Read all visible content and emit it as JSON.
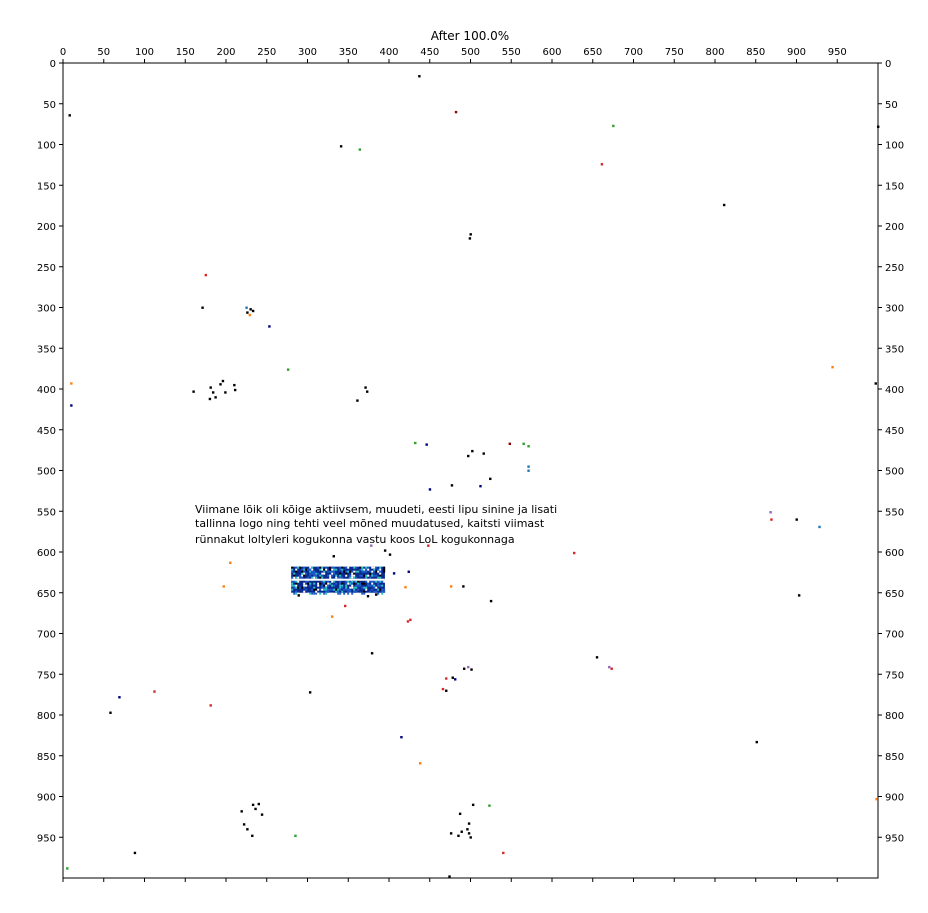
{
  "chart_data": {
    "type": "scatter",
    "title": "After 100.0%",
    "xlim": [
      0,
      1000
    ],
    "ylim": [
      0,
      1000
    ],
    "y_inverted": true,
    "x_ticks": [
      "0",
      "50",
      "100",
      "150",
      "200",
      "250",
      "300",
      "350",
      "400",
      "450",
      "500",
      "550",
      "600",
      "650",
      "700",
      "750",
      "800",
      "850",
      "900",
      "950"
    ],
    "y_ticks": [
      "0",
      "50",
      "100",
      "150",
      "200",
      "250",
      "300",
      "350",
      "400",
      "450",
      "500",
      "550",
      "600",
      "650",
      "700",
      "750",
      "800",
      "850",
      "900",
      "950"
    ],
    "grid": false,
    "annotation": [
      "Viimane lõik oli kõige aktiivsem, muudeti, eesti lipu sinine ja lisati",
      "tallinna logo ning tehti veel mõned muudatused, kaitsti viimast",
      "rünnakut loltyleri kogukonna vastu koos LoL kogukonnaga"
    ],
    "patch": {
      "x_range": [
        280,
        395
      ],
      "y_range": [
        618,
        650
      ],
      "colors": [
        "#0b2a8f",
        "#1f5cc8",
        "#2ec4c4",
        "#ffffff",
        "#000000"
      ]
    },
    "points": [
      {
        "x": 437,
        "y": 16,
        "c": "#000000"
      },
      {
        "x": 482,
        "y": 60,
        "c": "#8b0000"
      },
      {
        "x": 8,
        "y": 64,
        "c": "#000000"
      },
      {
        "x": 675,
        "y": 77,
        "c": "#2ca02c"
      },
      {
        "x": 1000,
        "y": 78,
        "c": "#000000"
      },
      {
        "x": 341,
        "y": 102,
        "c": "#000000"
      },
      {
        "x": 364,
        "y": 106,
        "c": "#2ca02c"
      },
      {
        "x": 661,
        "y": 124,
        "c": "#d62728"
      },
      {
        "x": 811,
        "y": 174,
        "c": "#000000"
      },
      {
        "x": 500,
        "y": 210,
        "c": "#000000"
      },
      {
        "x": 499,
        "y": 215,
        "c": "#000000"
      },
      {
        "x": 175,
        "y": 260,
        "c": "#d62728"
      },
      {
        "x": 171,
        "y": 300,
        "c": "#000000"
      },
      {
        "x": 225,
        "y": 300,
        "c": "#1f77b4"
      },
      {
        "x": 230,
        "y": 302,
        "c": "#000000"
      },
      {
        "x": 226,
        "y": 306,
        "c": "#000000"
      },
      {
        "x": 229,
        "y": 309,
        "c": "#ff7f0e"
      },
      {
        "x": 233,
        "y": 304,
        "c": "#000000"
      },
      {
        "x": 253,
        "y": 323,
        "c": "#000080"
      },
      {
        "x": 276,
        "y": 376,
        "c": "#2ca02c"
      },
      {
        "x": 944,
        "y": 373,
        "c": "#ff7f0e"
      },
      {
        "x": 10,
        "y": 393,
        "c": "#ff7f0e"
      },
      {
        "x": 997,
        "y": 393,
        "c": "#000000"
      },
      {
        "x": 160,
        "y": 403,
        "c": "#000000"
      },
      {
        "x": 181,
        "y": 398,
        "c": "#000000"
      },
      {
        "x": 184,
        "y": 404,
        "c": "#000000"
      },
      {
        "x": 187,
        "y": 410,
        "c": "#000000"
      },
      {
        "x": 180,
        "y": 412,
        "c": "#000000"
      },
      {
        "x": 193,
        "y": 394,
        "c": "#000000"
      },
      {
        "x": 196,
        "y": 390,
        "c": "#000000"
      },
      {
        "x": 199,
        "y": 404,
        "c": "#000000"
      },
      {
        "x": 210,
        "y": 395,
        "c": "#000000"
      },
      {
        "x": 211,
        "y": 401,
        "c": "#000000"
      },
      {
        "x": 371,
        "y": 398,
        "c": "#000000"
      },
      {
        "x": 373,
        "y": 403,
        "c": "#000000"
      },
      {
        "x": 361,
        "y": 414,
        "c": "#000000"
      },
      {
        "x": 10,
        "y": 420,
        "c": "#000080"
      },
      {
        "x": 432,
        "y": 466,
        "c": "#2ca02c"
      },
      {
        "x": 446,
        "y": 468,
        "c": "#000080"
      },
      {
        "x": 548,
        "y": 467,
        "c": "#8b0000"
      },
      {
        "x": 565,
        "y": 467,
        "c": "#2ca02c"
      },
      {
        "x": 571,
        "y": 470,
        "c": "#2ca02c"
      },
      {
        "x": 502,
        "y": 476,
        "c": "#000000"
      },
      {
        "x": 497,
        "y": 482,
        "c": "#000000"
      },
      {
        "x": 516,
        "y": 479,
        "c": "#000000"
      },
      {
        "x": 571,
        "y": 495,
        "c": "#1f77b4"
      },
      {
        "x": 571,
        "y": 500,
        "c": "#1f77b4"
      },
      {
        "x": 524,
        "y": 510,
        "c": "#000000"
      },
      {
        "x": 477,
        "y": 518,
        "c": "#000000"
      },
      {
        "x": 512,
        "y": 519,
        "c": "#000080"
      },
      {
        "x": 450,
        "y": 523,
        "c": "#000080"
      },
      {
        "x": 868,
        "y": 551,
        "c": "#9467bd"
      },
      {
        "x": 869,
        "y": 560,
        "c": "#d62728"
      },
      {
        "x": 900,
        "y": 560,
        "c": "#000000"
      },
      {
        "x": 928,
        "y": 569,
        "c": "#1f77b4"
      },
      {
        "x": 378,
        "y": 592,
        "c": "#9467bd"
      },
      {
        "x": 448,
        "y": 592,
        "c": "#d62728"
      },
      {
        "x": 395,
        "y": 598,
        "c": "#000000"
      },
      {
        "x": 401,
        "y": 603,
        "c": "#000000"
      },
      {
        "x": 627,
        "y": 601,
        "c": "#d62728"
      },
      {
        "x": 332,
        "y": 605,
        "c": "#000000"
      },
      {
        "x": 205,
        "y": 613,
        "c": "#ff7f0e"
      },
      {
        "x": 406,
        "y": 626,
        "c": "#000080"
      },
      {
        "x": 424,
        "y": 624,
        "c": "#000080"
      },
      {
        "x": 197,
        "y": 642,
        "c": "#ff7f0e"
      },
      {
        "x": 420,
        "y": 643,
        "c": "#ff7f0e"
      },
      {
        "x": 476,
        "y": 642,
        "c": "#ff7f0e"
      },
      {
        "x": 491,
        "y": 642,
        "c": "#000000"
      },
      {
        "x": 289,
        "y": 653,
        "c": "#000000"
      },
      {
        "x": 374,
        "y": 654,
        "c": "#000000"
      },
      {
        "x": 384,
        "y": 652,
        "c": "#000000"
      },
      {
        "x": 525,
        "y": 660,
        "c": "#000000"
      },
      {
        "x": 903,
        "y": 653,
        "c": "#000000"
      },
      {
        "x": 346,
        "y": 666,
        "c": "#d62728"
      },
      {
        "x": 330,
        "y": 679,
        "c": "#ff7f0e"
      },
      {
        "x": 423,
        "y": 685,
        "c": "#d62728"
      },
      {
        "x": 426,
        "y": 683,
        "c": "#d62728"
      },
      {
        "x": 379,
        "y": 724,
        "c": "#000000"
      },
      {
        "x": 655,
        "y": 729,
        "c": "#000000"
      },
      {
        "x": 670,
        "y": 741,
        "c": "#9467bd"
      },
      {
        "x": 673,
        "y": 743,
        "c": "#d62728"
      },
      {
        "x": 492,
        "y": 743,
        "c": "#000000"
      },
      {
        "x": 497,
        "y": 741,
        "c": "#9467bd"
      },
      {
        "x": 501,
        "y": 744,
        "c": "#000000"
      },
      {
        "x": 470,
        "y": 755,
        "c": "#d62728"
      },
      {
        "x": 478,
        "y": 754,
        "c": "#000000"
      },
      {
        "x": 481,
        "y": 756,
        "c": "#000080"
      },
      {
        "x": 466,
        "y": 768,
        "c": "#d62728"
      },
      {
        "x": 470,
        "y": 770,
        "c": "#000000"
      },
      {
        "x": 112,
        "y": 771,
        "c": "#d62728"
      },
      {
        "x": 303,
        "y": 772,
        "c": "#000000"
      },
      {
        "x": 69,
        "y": 778,
        "c": "#000080"
      },
      {
        "x": 181,
        "y": 788,
        "c": "#d62728"
      },
      {
        "x": 58,
        "y": 797,
        "c": "#000000"
      },
      {
        "x": 415,
        "y": 827,
        "c": "#000080"
      },
      {
        "x": 851,
        "y": 833,
        "c": "#000000"
      },
      {
        "x": 438,
        "y": 859,
        "c": "#ff7f0e"
      },
      {
        "x": 998,
        "y": 903,
        "c": "#ff7f0e"
      },
      {
        "x": 233,
        "y": 910,
        "c": "#000000"
      },
      {
        "x": 240,
        "y": 909,
        "c": "#000000"
      },
      {
        "x": 236,
        "y": 915,
        "c": "#000000"
      },
      {
        "x": 503,
        "y": 910,
        "c": "#000000"
      },
      {
        "x": 523,
        "y": 911,
        "c": "#2ca02c"
      },
      {
        "x": 219,
        "y": 918,
        "c": "#000000"
      },
      {
        "x": 244,
        "y": 922,
        "c": "#000000"
      },
      {
        "x": 487,
        "y": 921,
        "c": "#000000"
      },
      {
        "x": 222,
        "y": 934,
        "c": "#000000"
      },
      {
        "x": 226,
        "y": 940,
        "c": "#000000"
      },
      {
        "x": 498,
        "y": 933,
        "c": "#000000"
      },
      {
        "x": 476,
        "y": 945,
        "c": "#000000"
      },
      {
        "x": 489,
        "y": 943,
        "c": "#000000"
      },
      {
        "x": 496,
        "y": 940,
        "c": "#000000"
      },
      {
        "x": 498,
        "y": 945,
        "c": "#000000"
      },
      {
        "x": 485,
        "y": 948,
        "c": "#000000"
      },
      {
        "x": 500,
        "y": 950,
        "c": "#000000"
      },
      {
        "x": 232,
        "y": 948,
        "c": "#000000"
      },
      {
        "x": 285,
        "y": 948,
        "c": "#2ca02c"
      },
      {
        "x": 88,
        "y": 969,
        "c": "#000000"
      },
      {
        "x": 540,
        "y": 969,
        "c": "#d62728"
      },
      {
        "x": 5,
        "y": 988,
        "c": "#2ca02c"
      },
      {
        "x": 474,
        "y": 998,
        "c": "#000000"
      }
    ]
  }
}
